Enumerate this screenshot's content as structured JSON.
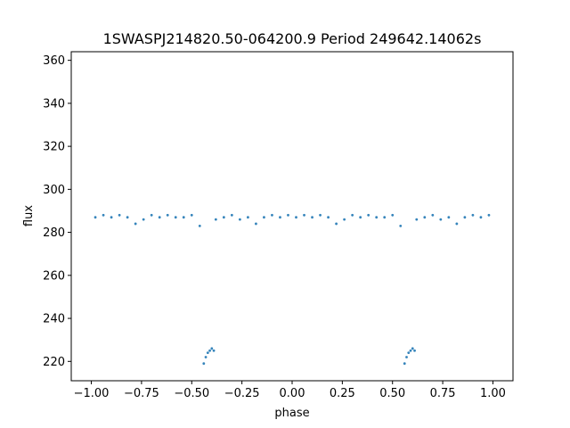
{
  "chart_data": {
    "type": "scatter",
    "title": "1SWASPJ214820.50-064200.9 Period 249642.14062s",
    "xlabel": "phase",
    "ylabel": "flux",
    "xlim": [
      -1.1,
      1.1
    ],
    "ylim": [
      211,
      364
    ],
    "xticks": [
      -1.0,
      -0.75,
      -0.5,
      -0.25,
      0.0,
      0.25,
      0.5,
      0.75,
      1.0
    ],
    "xtick_labels": [
      "−1.00",
      "−0.75",
      "−0.50",
      "−0.25",
      "0.00",
      "0.25",
      "0.50",
      "0.75",
      "1.00"
    ],
    "yticks": [
      220,
      240,
      260,
      280,
      300,
      320,
      340,
      360
    ],
    "ytick_labels": [
      "220",
      "240",
      "260",
      "280",
      "300",
      "320",
      "340",
      "360"
    ],
    "grid": false,
    "marker_color": "#1f77b4",
    "folded": true,
    "x": [
      -0.98,
      -0.94,
      -0.9,
      -0.86,
      -0.82,
      -0.78,
      -0.74,
      -0.7,
      -0.66,
      -0.62,
      -0.58,
      -0.54,
      -0.5,
      -0.46,
      -0.44,
      -0.43,
      -0.42,
      -0.41,
      -0.4,
      -0.39,
      -0.38,
      -0.34,
      -0.3,
      -0.26,
      -0.22,
      -0.18,
      -0.14,
      -0.1,
      -0.06,
      -0.02,
      0.02,
      0.06,
      0.1,
      0.14,
      0.18,
      0.22,
      0.26,
      0.3,
      0.34,
      0.38,
      0.42,
      0.46,
      0.5,
      0.54,
      0.56,
      0.57,
      0.58,
      0.59,
      0.6,
      0.61,
      0.62,
      0.66,
      0.7,
      0.74,
      0.78,
      0.82,
      0.86,
      0.9,
      0.94,
      0.98
    ],
    "y": [
      287,
      288,
      287,
      288,
      287,
      284,
      286,
      288,
      287,
      288,
      287,
      287,
      288,
      283,
      219,
      222,
      224,
      225,
      226,
      225,
      286,
      287,
      288,
      286,
      287,
      284,
      287,
      288,
      287,
      288,
      287,
      288,
      287,
      288,
      287,
      284,
      286,
      288,
      287,
      288,
      287,
      287,
      288,
      283,
      219,
      222,
      224,
      225,
      226,
      225,
      286,
      287,
      288,
      286,
      287,
      284,
      287,
      288,
      287,
      288
    ]
  }
}
